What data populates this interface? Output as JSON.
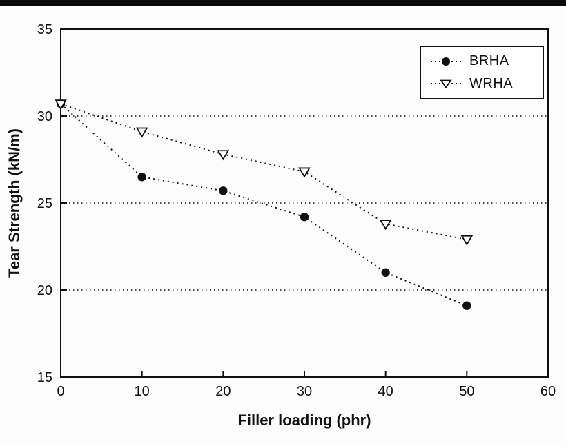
{
  "chart_data": {
    "type": "scatter",
    "title": "",
    "xlabel": "Filler loading (phr)",
    "ylabel": "Tear Strength (kN/m)",
    "xlim": [
      0,
      60
    ],
    "ylim": [
      15,
      35
    ],
    "xticks": [
      0,
      10,
      20,
      30,
      40,
      50,
      60
    ],
    "yticks": [
      15,
      20,
      25,
      30,
      35
    ],
    "gridlines_y": [
      20,
      25,
      30
    ],
    "grid": "dotted horizontal",
    "line_style": "dotted",
    "legend_position": "top-right",
    "x": [
      0,
      10,
      20,
      30,
      40,
      50
    ],
    "series": [
      {
        "name": "BRHA",
        "marker": "filled-circle",
        "values": [
          30.7,
          26.5,
          25.7,
          24.2,
          21.0,
          19.1
        ]
      },
      {
        "name": "WRHA",
        "marker": "open-triangle-down",
        "values": [
          30.7,
          29.1,
          27.8,
          26.8,
          23.8,
          22.9
        ]
      }
    ],
    "colors": {
      "ink": "#111111",
      "background": "#ffffff"
    }
  }
}
